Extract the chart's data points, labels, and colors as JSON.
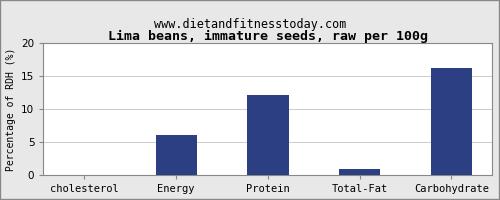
{
  "title": "Lima beans, immature seeds, raw per 100g",
  "subtitle": "www.dietandfitnesstoday.com",
  "categories": [
    "cholesterol",
    "Energy",
    "Protein",
    "Total-Fat",
    "Carbohydrate"
  ],
  "values": [
    0,
    6.1,
    12.1,
    1.0,
    16.2
  ],
  "bar_color": "#2b3f82",
  "ylabel": "Percentage of RDH (%)",
  "ylim": [
    0,
    20
  ],
  "yticks": [
    0,
    5,
    10,
    15,
    20
  ],
  "fig_bg_color": "#e8e8e8",
  "plot_bg_color": "#ffffff",
  "title_fontsize": 9.5,
  "subtitle_fontsize": 8.5,
  "ylabel_fontsize": 7,
  "xlabel_fontsize": 7.5,
  "tick_fontsize": 7.5,
  "border_color": "#888888",
  "grid_color": "#cccccc"
}
